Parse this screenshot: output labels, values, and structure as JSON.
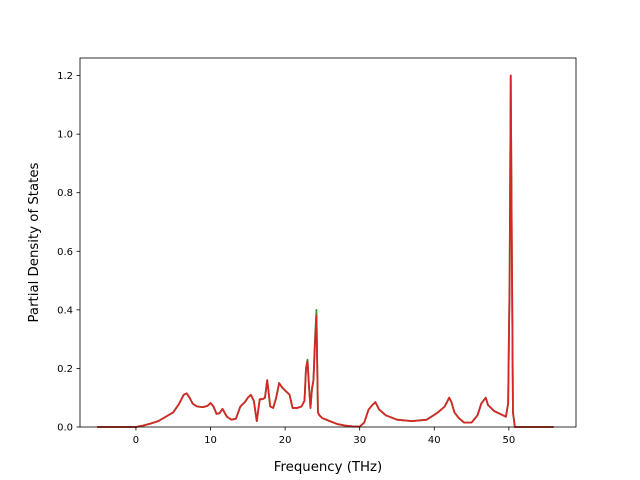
{
  "chart_data": {
    "type": "line",
    "title": "",
    "xlabel": "Frequency (THz)",
    "ylabel": "Partial Density of States",
    "xlim": [
      -7.5,
      59.0
    ],
    "ylim": [
      0.0,
      1.26
    ],
    "xticks": [
      0,
      10,
      20,
      30,
      40,
      50
    ],
    "yticks": [
      0.0,
      0.2,
      0.4,
      0.6,
      0.8,
      1.0,
      1.2
    ],
    "xtick_labels": [
      "0",
      "10",
      "20",
      "30",
      "40",
      "50"
    ],
    "ytick_labels": [
      "0.0",
      "0.2",
      "0.4",
      "0.6",
      "0.8",
      "1.0",
      "1.2"
    ],
    "grid": false,
    "legend": "none",
    "series": [
      {
        "color": "#2ca02c",
        "x": [
          -5.2,
          0,
          1,
          2,
          3,
          4,
          5,
          5.8,
          6.4,
          6.8,
          7.2,
          7.6,
          8.2,
          9,
          9.6,
          10,
          10.4,
          10.8,
          11.2,
          11.6,
          12.2,
          12.8,
          13.4,
          14,
          14.6,
          15,
          15.4,
          15.8,
          16.2,
          16.6,
          17,
          17.3,
          17.6,
          18,
          18.4,
          18.8,
          19.2,
          19.6,
          20.2,
          20.6,
          21,
          21.6,
          22.2,
          22.6,
          22.8,
          23,
          23.2,
          23.4,
          23.6,
          23.8,
          24,
          24.2,
          24.4,
          24.6,
          25,
          26,
          27,
          28,
          29,
          30,
          30.6,
          31.2,
          31.7,
          32.1,
          32.6,
          33.5,
          35,
          37,
          39,
          40.5,
          41.4,
          42,
          42.3,
          42.7,
          43.3,
          44,
          45,
          45.8,
          46.3,
          46.6,
          46.9,
          47.2,
          48,
          48.8,
          49.6,
          49.9,
          50.1,
          50.25,
          50.4,
          50.55,
          50.8,
          51.5,
          56
        ],
        "y": [
          0.0,
          0.0,
          0.005,
          0.012,
          0.02,
          0.035,
          0.05,
          0.08,
          0.11,
          0.115,
          0.1,
          0.08,
          0.07,
          0.068,
          0.072,
          0.082,
          0.07,
          0.045,
          0.047,
          0.062,
          0.035,
          0.025,
          0.028,
          0.07,
          0.085,
          0.1,
          0.11,
          0.09,
          0.02,
          0.095,
          0.095,
          0.1,
          0.16,
          0.07,
          0.065,
          0.1,
          0.15,
          0.135,
          0.12,
          0.11,
          0.065,
          0.065,
          0.07,
          0.09,
          0.2,
          0.23,
          0.14,
          0.065,
          0.13,
          0.16,
          0.3,
          0.4,
          0.05,
          0.04,
          0.03,
          0.02,
          0.01,
          0.005,
          0.002,
          0.001,
          0.015,
          0.06,
          0.075,
          0.085,
          0.06,
          0.04,
          0.025,
          0.02,
          0.025,
          0.05,
          0.07,
          0.1,
          0.085,
          0.05,
          0.03,
          0.015,
          0.015,
          0.04,
          0.08,
          0.09,
          0.1,
          0.075,
          0.055,
          0.045,
          0.035,
          0.08,
          0.5,
          1.2,
          0.6,
          0.05,
          0.0,
          0.0,
          0.0
        ]
      },
      {
        "color": "#d62728",
        "x": [
          -5.2,
          0,
          1,
          2,
          3,
          4,
          5,
          5.8,
          6.4,
          6.8,
          7.2,
          7.6,
          8.2,
          9,
          9.6,
          10,
          10.4,
          10.8,
          11.2,
          11.6,
          12.2,
          12.8,
          13.4,
          14,
          14.6,
          15,
          15.4,
          15.8,
          16.2,
          16.6,
          17,
          17.3,
          17.6,
          18,
          18.4,
          18.8,
          19.2,
          19.6,
          20.2,
          20.6,
          21,
          21.6,
          22.2,
          22.6,
          22.8,
          23,
          23.2,
          23.4,
          23.6,
          23.8,
          24,
          24.2,
          24.4,
          24.6,
          25,
          26,
          27,
          28,
          29,
          30,
          30.6,
          31.2,
          31.7,
          32.1,
          32.6,
          33.5,
          35,
          37,
          39,
          40.5,
          41.4,
          42,
          42.3,
          42.7,
          43.3,
          44,
          45,
          45.8,
          46.3,
          46.6,
          46.9,
          47.2,
          48,
          48.8,
          49.6,
          49.9,
          50.1,
          50.25,
          50.4,
          50.55,
          50.8,
          51.5,
          56
        ],
        "y": [
          0.0,
          0.0,
          0.005,
          0.012,
          0.02,
          0.035,
          0.05,
          0.08,
          0.11,
          0.115,
          0.1,
          0.08,
          0.07,
          0.068,
          0.072,
          0.082,
          0.07,
          0.045,
          0.047,
          0.062,
          0.035,
          0.025,
          0.028,
          0.07,
          0.085,
          0.1,
          0.11,
          0.09,
          0.02,
          0.095,
          0.095,
          0.1,
          0.16,
          0.07,
          0.065,
          0.1,
          0.15,
          0.135,
          0.12,
          0.11,
          0.065,
          0.065,
          0.07,
          0.09,
          0.2,
          0.225,
          0.14,
          0.065,
          0.13,
          0.16,
          0.28,
          0.38,
          0.05,
          0.04,
          0.03,
          0.02,
          0.01,
          0.005,
          0.002,
          0.001,
          0.015,
          0.06,
          0.075,
          0.085,
          0.06,
          0.04,
          0.025,
          0.02,
          0.025,
          0.05,
          0.07,
          0.1,
          0.085,
          0.05,
          0.03,
          0.015,
          0.015,
          0.04,
          0.08,
          0.09,
          0.1,
          0.075,
          0.055,
          0.045,
          0.035,
          0.08,
          0.5,
          1.2,
          0.6,
          0.05,
          0.0,
          0.0,
          0.0
        ]
      }
    ]
  }
}
